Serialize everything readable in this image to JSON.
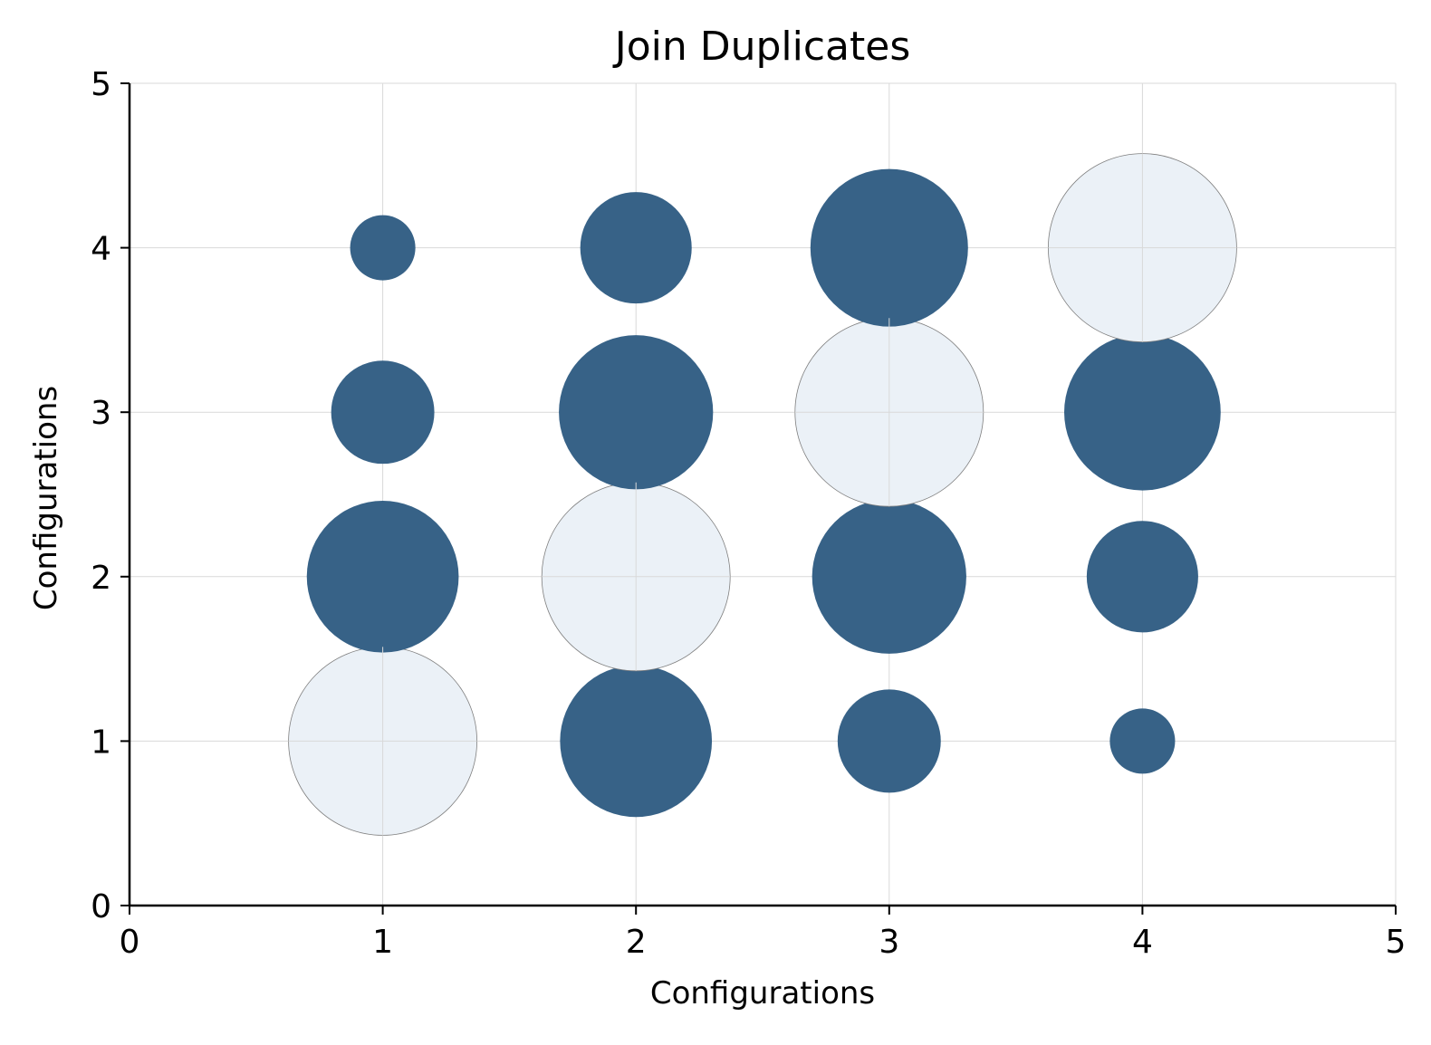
{
  "chart_data": {
    "type": "scatter",
    "title": "Join Duplicates",
    "xlabel": "Configurations",
    "ylabel": "Configurations",
    "xlim": [
      0,
      5
    ],
    "ylim": [
      0,
      5
    ],
    "xticks": [
      "0",
      "1",
      "2",
      "3",
      "4",
      "5"
    ],
    "yticks": [
      "0",
      "1",
      "2",
      "3",
      "4",
      "5"
    ],
    "grid": true,
    "colors": {
      "highlight": "#ebf1f7",
      "normal": "#376287",
      "edge": "#7f7f7f"
    },
    "points": [
      {
        "x": 1,
        "y": 1,
        "size": 1.0,
        "highlight": true
      },
      {
        "x": 1,
        "y": 2,
        "size": 0.65,
        "highlight": false
      },
      {
        "x": 1,
        "y": 3,
        "size": 0.3,
        "highlight": false
      },
      {
        "x": 1,
        "y": 4,
        "size": 0.12,
        "highlight": false
      },
      {
        "x": 2,
        "y": 1,
        "size": 0.65,
        "highlight": false
      },
      {
        "x": 2,
        "y": 2,
        "size": 1.0,
        "highlight": true
      },
      {
        "x": 2,
        "y": 3,
        "size": 0.67,
        "highlight": false
      },
      {
        "x": 2,
        "y": 4,
        "size": 0.35,
        "highlight": false
      },
      {
        "x": 3,
        "y": 1,
        "size": 0.3,
        "highlight": false
      },
      {
        "x": 3,
        "y": 2,
        "size": 0.67,
        "highlight": false
      },
      {
        "x": 3,
        "y": 3,
        "size": 1.0,
        "highlight": true
      },
      {
        "x": 3,
        "y": 4,
        "size": 0.7,
        "highlight": false
      },
      {
        "x": 4,
        "y": 1,
        "size": 0.12,
        "highlight": false
      },
      {
        "x": 4,
        "y": 2,
        "size": 0.35,
        "highlight": false
      },
      {
        "x": 4,
        "y": 3,
        "size": 0.69,
        "highlight": false
      },
      {
        "x": 4,
        "y": 4,
        "size": 1.0,
        "highlight": true
      }
    ]
  }
}
